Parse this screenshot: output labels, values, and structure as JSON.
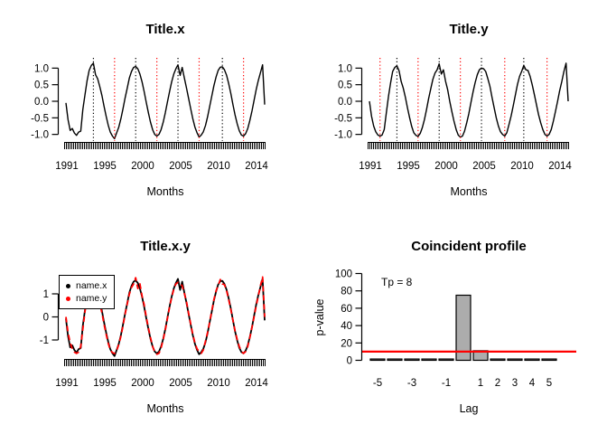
{
  "figure": {
    "background": "#FFFFFF",
    "accent_red": "#FF0000",
    "bar_gray": "#ACACAC"
  },
  "chart_data": [
    {
      "type": "line",
      "title": "Title.x",
      "xlabel": "Months",
      "x_start": 1991,
      "x_step": 0.25,
      "x_end": 2014.5,
      "x_ticks": [
        "1991",
        "1995",
        "2000",
        "2005",
        "2010",
        "2014"
      ],
      "y_ticks": [
        "1.0",
        "0.5",
        "0.0",
        "-0.5",
        "-1.0"
      ],
      "y_tick_values": [
        1,
        0.5,
        0,
        -0.5,
        -1
      ],
      "ylim": [
        -1.25,
        1.3
      ],
      "grid": false,
      "rug": "monthly tick marks along x-axis",
      "peak_lines": {
        "color": "#000000",
        "style": "dotted",
        "years": [
          1994.25,
          1999.25,
          2004.25,
          2009.5
        ]
      },
      "trough_lines": {
        "color": "#FF0000",
        "style": "dotted",
        "years": [
          1996.75,
          2001.75,
          2006.75,
          2012.0
        ]
      },
      "series": [
        {
          "name": "x",
          "color": "#000000",
          "dash": "solid",
          "values": [
            -0.05,
            -0.55,
            -0.88,
            -0.82,
            -0.96,
            -1.03,
            -0.93,
            -0.9,
            -0.25,
            0.2,
            0.62,
            0.93,
            1.08,
            1.15,
            0.8,
            0.68,
            0.45,
            0.18,
            -0.14,
            -0.45,
            -0.72,
            -0.93,
            -1.05,
            -1.13,
            -0.95,
            -0.78,
            -0.52,
            -0.22,
            0.1,
            0.4,
            0.7,
            0.9,
            1.02,
            1.05,
            0.98,
            0.82,
            0.58,
            0.29,
            -0.03,
            -0.35,
            -0.63,
            -0.86,
            -1,
            -1.05,
            -1,
            -0.86,
            -0.63,
            -0.35,
            -0.03,
            0.29,
            0.58,
            0.82,
            0.98,
            1.1,
            0.78,
            1.02,
            0.7,
            0.41,
            0.1,
            -0.22,
            -0.52,
            -0.78,
            -0.95,
            -1.08,
            -1.02,
            -0.92,
            -0.73,
            -0.47,
            -0.16,
            0.16,
            0.47,
            0.73,
            0.93,
            1.03,
            1.04,
            0.95,
            0.78,
            0.53,
            0.23,
            -0.1,
            -0.41,
            -0.68,
            -0.89,
            -1.02,
            -1.05,
            -0.98,
            -0.82,
            -0.58,
            -0.29,
            0.03,
            0.35,
            0.63,
            0.86,
            1.1,
            -0.1
          ]
        }
      ]
    },
    {
      "type": "line",
      "title": "Title.y",
      "xlabel": "Months",
      "x_start": 1991,
      "x_step": 0.25,
      "x_end": 2014.5,
      "x_ticks": [
        "1991",
        "1995",
        "2000",
        "2005",
        "2010",
        "2014"
      ],
      "y_ticks": [
        "1.0",
        "0.5",
        "0.0",
        "-0.5",
        "-1.0"
      ],
      "y_tick_values": [
        1,
        0.5,
        0,
        -0.5,
        -1
      ],
      "ylim": [
        -1.25,
        1.3
      ],
      "grid": false,
      "rug": "monthly tick marks along x-axis",
      "peak_lines": {
        "color": "#000000",
        "style": "dotted",
        "years": [
          1994.25,
          1999.25,
          2004.25,
          2009.25
        ]
      },
      "trough_lines": {
        "color": "#FF0000",
        "style": "dotted",
        "years": [
          1992.25,
          1996.75,
          2001.75,
          2007.0,
          2012.0
        ]
      },
      "series": [
        {
          "name": "y",
          "color": "#000000",
          "dash": "solid",
          "values": [
            0,
            -0.45,
            -0.75,
            -0.92,
            -1.02,
            -1.05,
            -1.02,
            -0.85,
            -0.35,
            0.15,
            0.55,
            0.9,
            1.02,
            1.07,
            0.92,
            0.6,
            0.4,
            0.12,
            -0.2,
            -0.5,
            -0.76,
            -0.95,
            -1.03,
            -1.06,
            -0.97,
            -0.8,
            -0.55,
            -0.25,
            0.08,
            0.38,
            0.66,
            0.85,
            0.95,
            1.13,
            0.82,
            0.95,
            0.6,
            0.35,
            0,
            -0.32,
            -0.6,
            -0.85,
            -1.02,
            -1.08,
            -1.05,
            -0.9,
            -0.65,
            -0.38,
            -0.05,
            0.28,
            0.56,
            0.8,
            0.95,
            1,
            0.98,
            0.9,
            0.68,
            0.45,
            0.12,
            -0.2,
            -0.5,
            -0.75,
            -0.92,
            -1,
            -1.05,
            -0.95,
            -0.7,
            -0.45,
            -0.15,
            0.18,
            0.5,
            0.75,
            0.9,
            1.08,
            0.95,
            0.93,
            0.75,
            0.5,
            0.2,
            -0.1,
            -0.4,
            -0.65,
            -0.85,
            -1,
            -1.05,
            -1,
            -0.85,
            -0.6,
            -0.3,
            0,
            0.32,
            0.6,
            0.9,
            1.15,
            0
          ]
        }
      ]
    },
    {
      "type": "line",
      "title": "Title.x.y",
      "xlabel": "Months",
      "x_start": 1991,
      "x_step": 0.25,
      "x_end": 2014.5,
      "x_ticks": [
        "1991",
        "1995",
        "2000",
        "2005",
        "2010",
        "2014"
      ],
      "y_ticks": [
        "1",
        "0",
        "-1"
      ],
      "y_tick_values": [
        1,
        0,
        -1
      ],
      "ylim": [
        -1.86,
        1.86
      ],
      "grid": false,
      "rug": "monthly tick marks along x-axis",
      "legend": {
        "position": "top-left",
        "items": [
          {
            "label": "name.x",
            "color": "#000000"
          },
          {
            "label": "name.y",
            "color": "#FF0000"
          }
        ]
      },
      "series": [
        {
          "name": "name.x",
          "color": "#000000",
          "dash": "solid",
          "values": [
            -0.08,
            -0.83,
            -1.32,
            -1.23,
            -1.44,
            -1.55,
            -1.4,
            -1.35,
            -0.38,
            0.3,
            0.93,
            1.4,
            1.62,
            1.73,
            1.2,
            1.02,
            0.68,
            0.27,
            -0.21,
            -0.68,
            -1.08,
            -1.4,
            -1.58,
            -1.7,
            -1.43,
            -1.17,
            -0.78,
            -0.33,
            0.15,
            0.6,
            1.05,
            1.35,
            1.53,
            1.58,
            1.47,
            1.23,
            0.87,
            0.44,
            -0.05,
            -0.53,
            -0.95,
            -1.29,
            -1.5,
            -1.58,
            -1.5,
            -1.29,
            -0.95,
            -0.53,
            -0.05,
            0.44,
            0.87,
            1.23,
            1.47,
            1.65,
            1.17,
            1.53,
            1.05,
            0.62,
            0.15,
            -0.33,
            -0.78,
            -1.17,
            -1.43,
            -1.62,
            -1.53,
            -1.38,
            -1.1,
            -0.71,
            -0.24,
            0.24,
            0.71,
            1.1,
            1.4,
            1.55,
            1.56,
            1.43,
            1.17,
            0.8,
            0.35,
            -0.15,
            -0.62,
            -1.02,
            -1.34,
            -1.53,
            -1.58,
            -1.47,
            -1.23,
            -0.87,
            -0.44,
            0.05,
            0.53,
            0.95,
            1.29,
            1.65,
            -0.15
          ]
        },
        {
          "name": "name.y",
          "color": "#FF0000",
          "dash": "dashed",
          "values": [
            0,
            -0.68,
            -1.13,
            -1.38,
            -1.53,
            -1.58,
            -1.53,
            -1.28,
            -0.53,
            0.23,
            0.83,
            1.35,
            1.53,
            1.61,
            1.38,
            0.9,
            0.6,
            0.18,
            -0.3,
            -0.75,
            -1.14,
            -1.43,
            -1.55,
            -1.59,
            -1.46,
            -1.2,
            -0.83,
            -0.38,
            0.12,
            0.57,
            0.99,
            1.28,
            1.43,
            1.7,
            1.23,
            1.43,
            0.9,
            0.53,
            0,
            -0.48,
            -0.9,
            -1.28,
            -1.53,
            -1.62,
            -1.58,
            -1.35,
            -0.98,
            -0.57,
            -0.08,
            0.42,
            0.84,
            1.2,
            1.43,
            1.5,
            1.47,
            1.35,
            1.02,
            0.68,
            0.18,
            -0.3,
            -0.75,
            -1.13,
            -1.38,
            -1.5,
            -1.58,
            -1.43,
            -1.05,
            -0.68,
            -0.23,
            0.27,
            0.75,
            1.13,
            1.35,
            1.62,
            1.43,
            1.4,
            1.13,
            0.75,
            0.3,
            -0.15,
            -0.6,
            -0.98,
            -1.28,
            -1.5,
            -1.58,
            -1.5,
            -1.28,
            -0.9,
            -0.45,
            0,
            0.48,
            0.9,
            1.35,
            1.73,
            0
          ]
        }
      ]
    },
    {
      "type": "bar",
      "title": "Coincident profile",
      "xlabel": "Lag",
      "ylabel": "p-value",
      "annotation": "Tp = 8",
      "categories": [
        -5,
        -4,
        -3,
        -2,
        -1,
        0,
        1,
        2,
        3,
        4,
        5
      ],
      "values": [
        1.5,
        1.5,
        1.5,
        1.5,
        1.5,
        75,
        11,
        1.5,
        1.5,
        1.5,
        1.5
      ],
      "x_tick_labels": [
        "-5",
        "-3",
        "-1",
        "1",
        "2",
        "3",
        "4",
        "5"
      ],
      "x_tick_lags": [
        -5,
        -3,
        -1,
        1,
        2,
        3,
        4,
        5
      ],
      "y_ticks": [
        "100",
        "80",
        "60",
        "40",
        "20",
        "0"
      ],
      "y_tick_values": [
        100,
        80,
        60,
        40,
        20,
        0
      ],
      "ylim": [
        0,
        100
      ],
      "grid": false,
      "bar_color": "#ACACAC",
      "bar_border": "#000000",
      "threshold_line": {
        "value": 10,
        "color": "#FF0000"
      }
    }
  ]
}
